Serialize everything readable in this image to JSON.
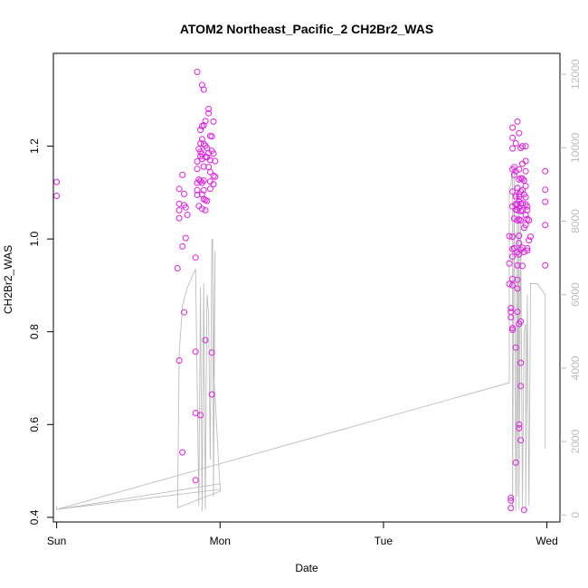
{
  "chart_data": {
    "type": "scatter",
    "title": "ATOM2 Northeast_Pacific_2 CH2Br2_WAS",
    "xlabel": "Date",
    "ylabel": "CH2Br2_WAS",
    "x_ticks": [
      "Sun",
      "Mon",
      "Tue",
      "Wed"
    ],
    "y_ticks": [
      "0.4",
      "0.6",
      "0.8",
      "1.0",
      "1.2"
    ],
    "y2_ticks": [
      "0",
      "2000",
      "4000",
      "6000",
      "8000",
      "10000",
      "12000"
    ],
    "xlim": [
      -0.02,
      3.08
    ],
    "ylim": [
      0.39,
      1.4
    ],
    "y2lim": [
      -190,
      12570
    ],
    "colors": {
      "points": "#e21fe6",
      "altitude": "#bdbdbd",
      "axis": "#000000",
      "right_axis": "#bdbdbd"
    },
    "series": [
      {
        "kind": "points",
        "values": [
          [
            0.0,
            1.123
          ],
          [
            0.0,
            1.093
          ],
          [
            0.74,
            0.937
          ],
          [
            0.75,
            0.738
          ],
          [
            0.75,
            1.108
          ],
          [
            0.75,
            1.076
          ],
          [
            0.75,
            1.062
          ],
          [
            0.75,
            1.045
          ],
          [
            0.77,
            1.138
          ],
          [
            0.77,
            0.54
          ],
          [
            0.77,
            0.984
          ],
          [
            0.78,
            0.842
          ],
          [
            0.78,
            1.097
          ],
          [
            0.78,
            1.073
          ],
          [
            0.79,
            1.002
          ],
          [
            0.79,
            1.068
          ],
          [
            0.8,
            1.052
          ],
          [
            0.85,
            0.96
          ],
          [
            0.85,
            0.48
          ],
          [
            0.85,
            0.757
          ],
          [
            0.85,
            0.625
          ],
          [
            0.86,
            1.36
          ],
          [
            0.86,
            1.167
          ],
          [
            0.86,
            1.151
          ],
          [
            0.86,
            1.121
          ],
          [
            0.86,
            1.105
          ],
          [
            0.86,
            1.095
          ],
          [
            0.87,
            1.071
          ],
          [
            0.87,
            1.128
          ],
          [
            0.87,
            1.194
          ],
          [
            0.88,
            1.235
          ],
          [
            0.88,
            1.206
          ],
          [
            0.88,
            1.188
          ],
          [
            0.88,
            1.178
          ],
          [
            0.88,
            1.125
          ],
          [
            0.88,
            0.62
          ],
          [
            0.89,
            1.332
          ],
          [
            0.89,
            1.243
          ],
          [
            0.89,
            1.215
          ],
          [
            0.89,
            1.183
          ],
          [
            0.89,
            1.172
          ],
          [
            0.89,
            1.121
          ],
          [
            0.89,
            1.096
          ],
          [
            0.89,
            1.065
          ],
          [
            0.9,
            1.322
          ],
          [
            0.9,
            1.245
          ],
          [
            0.9,
            1.205
          ],
          [
            0.9,
            1.156
          ],
          [
            0.9,
            1.126
          ],
          [
            0.9,
            1.105
          ],
          [
            0.9,
            1.086
          ],
          [
            0.91,
            1.254
          ],
          [
            0.91,
            1.201
          ],
          [
            0.91,
            1.177
          ],
          [
            0.91,
            1.084
          ],
          [
            0.91,
            1.062
          ],
          [
            0.91,
            0.782
          ],
          [
            0.92,
            1.196
          ],
          [
            0.92,
            1.176
          ],
          [
            0.92,
            1.082
          ],
          [
            0.93,
            1.28
          ],
          [
            0.93,
            1.271
          ],
          [
            0.93,
            1.185
          ],
          [
            0.93,
            1.155
          ],
          [
            0.94,
            1.222
          ],
          [
            0.94,
            1.17
          ],
          [
            0.94,
            1.144
          ],
          [
            0.94,
            1.124
          ],
          [
            0.94,
            1.108
          ],
          [
            0.95,
            1.221
          ],
          [
            0.95,
            1.19
          ],
          [
            0.95,
            0.755
          ],
          [
            0.95,
            0.665
          ],
          [
            0.96,
            1.253
          ],
          [
            0.96,
            1.184
          ],
          [
            0.96,
            1.136
          ],
          [
            0.96,
            1.118
          ],
          [
            0.97,
            1.168
          ],
          [
            0.97,
            1.134
          ],
          [
            2.77,
            1.006
          ],
          [
            2.77,
            0.947
          ],
          [
            2.77,
            0.903
          ],
          [
            2.78,
            0.851
          ],
          [
            2.78,
            0.843
          ],
          [
            2.78,
            0.831
          ],
          [
            2.78,
            0.442
          ],
          [
            2.78,
            0.436
          ],
          [
            2.78,
            0.42
          ],
          [
            2.79,
            1.24
          ],
          [
            2.79,
            1.218
          ],
          [
            2.79,
            1.195
          ],
          [
            2.79,
            1.15
          ],
          [
            2.79,
            1.102
          ],
          [
            2.79,
            1.07
          ],
          [
            2.79,
            1.005
          ],
          [
            2.79,
            0.978
          ],
          [
            2.79,
            0.962
          ],
          [
            2.79,
            0.914
          ],
          [
            2.79,
            0.9
          ],
          [
            2.79,
            0.808
          ],
          [
            2.79,
            0.804
          ],
          [
            2.8,
            1.155
          ],
          [
            2.8,
            1.138
          ],
          [
            2.8,
            1.044
          ],
          [
            2.8,
            0.98
          ],
          [
            2.81,
            1.206
          ],
          [
            2.81,
            1.146
          ],
          [
            2.81,
            1.092
          ],
          [
            2.81,
            1.075
          ],
          [
            2.81,
            1.063
          ],
          [
            2.81,
            0.766
          ],
          [
            2.81,
            0.518
          ],
          [
            2.82,
            1.253
          ],
          [
            2.82,
            1.11
          ],
          [
            2.82,
            1.075
          ],
          [
            2.82,
            1.062
          ],
          [
            2.82,
            1.04
          ],
          [
            2.82,
            0.971
          ],
          [
            2.82,
            0.943
          ],
          [
            2.82,
            0.912
          ],
          [
            2.82,
            0.893
          ],
          [
            2.82,
            0.843
          ],
          [
            2.83,
            1.228
          ],
          [
            2.83,
            1.15
          ],
          [
            2.83,
            1.128
          ],
          [
            2.83,
            1.096
          ],
          [
            2.83,
            1.091
          ],
          [
            2.83,
            1.081
          ],
          [
            2.83,
            1.067
          ],
          [
            2.83,
            1.042
          ],
          [
            2.83,
            1.007
          ],
          [
            2.83,
            0.991
          ],
          [
            2.83,
            0.967
          ],
          [
            2.83,
            0.817
          ],
          [
            2.83,
            0.6
          ],
          [
            2.83,
            0.592
          ],
          [
            2.84,
            1.196
          ],
          [
            2.84,
            1.131
          ],
          [
            2.84,
            1.102
          ],
          [
            2.84,
            1.076
          ],
          [
            2.84,
            1.06
          ],
          [
            2.84,
            1.04
          ],
          [
            2.84,
            0.977
          ],
          [
            2.84,
            0.822
          ],
          [
            2.84,
            0.733
          ],
          [
            2.84,
            0.683
          ],
          [
            2.84,
            0.566
          ],
          [
            2.85,
            1.2
          ],
          [
            2.85,
            1.162
          ],
          [
            2.85,
            1.13
          ],
          [
            2.85,
            1.105
          ],
          [
            2.85,
            1.077
          ],
          [
            2.85,
            1.062
          ],
          [
            2.85,
            0.981
          ],
          [
            2.85,
            0.942
          ],
          [
            2.86,
            1.126
          ],
          [
            2.86,
            1.096
          ],
          [
            2.86,
            1.024
          ],
          [
            2.86,
            0.972
          ],
          [
            2.86,
            0.416
          ],
          [
            2.87,
            1.2
          ],
          [
            2.87,
            1.168
          ],
          [
            2.87,
            1.146
          ],
          [
            2.87,
            1.114
          ],
          [
            2.87,
            1.09
          ],
          [
            2.87,
            1.075
          ],
          [
            2.87,
            1.052
          ],
          [
            2.87,
            1.03
          ],
          [
            2.88,
            1.07
          ],
          [
            2.88,
            1.062
          ],
          [
            2.88,
            1.043
          ],
          [
            2.88,
            0.98
          ],
          [
            2.88,
            0.975
          ],
          [
            2.89,
            1.04
          ],
          [
            2.89,
            0.997
          ],
          [
            2.9,
            1.005
          ],
          [
            2.99,
            1.146
          ],
          [
            2.99,
            1.106
          ],
          [
            2.99,
            1.08
          ],
          [
            2.99,
            1.03
          ],
          [
            2.99,
            0.943
          ]
        ]
      },
      {
        "kind": "altitude",
        "axis": "right",
        "values": [
          [
            0.0,
            250
          ],
          [
            0.0,
            150
          ],
          [
            1.0,
            850
          ],
          [
            1.0,
            650
          ],
          [
            0.74,
            200
          ],
          [
            0.75,
            4400
          ],
          [
            0.77,
            5700
          ],
          [
            0.8,
            6200
          ],
          [
            0.85,
            6700
          ],
          [
            0.87,
            250
          ],
          [
            0.88,
            6200
          ],
          [
            0.89,
            100
          ],
          [
            0.9,
            6300
          ],
          [
            0.91,
            150
          ],
          [
            0.92,
            6000
          ],
          [
            0.93,
            5500
          ],
          [
            0.94,
            1500
          ],
          [
            0.95,
            7500
          ],
          [
            0.955,
            7500
          ],
          [
            0.96,
            500
          ],
          [
            0.97,
            7200
          ],
          [
            0.96,
            4000
          ],
          [
            1.0,
            700
          ],
          [
            0.0,
            150
          ],
          [
            2.77,
            3600
          ],
          [
            2.77,
            8900
          ],
          [
            2.78,
            9000
          ],
          [
            2.79,
            9400
          ],
          [
            2.79,
            200
          ],
          [
            2.8,
            9300
          ],
          [
            2.81,
            100
          ],
          [
            2.82,
            9000
          ],
          [
            2.82,
            500
          ],
          [
            2.83,
            8900
          ],
          [
            2.83,
            150
          ],
          [
            2.84,
            8000
          ],
          [
            2.85,
            200
          ],
          [
            2.86,
            5000
          ],
          [
            2.87,
            5200
          ],
          [
            2.87,
            100
          ],
          [
            2.88,
            6000
          ],
          [
            2.89,
            250
          ],
          [
            2.9,
            6300
          ],
          [
            2.94,
            6300
          ],
          [
            2.99,
            6000
          ],
          [
            2.99,
            1800
          ]
        ]
      }
    ]
  }
}
